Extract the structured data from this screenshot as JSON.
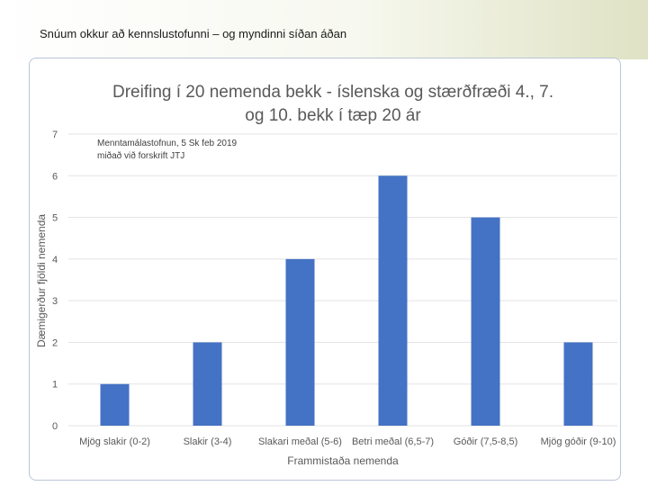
{
  "header": {
    "title": "Snúum okkur að kennslustofunni – og myndinni síðan áðan"
  },
  "chart_data": {
    "type": "bar",
    "title_lines": [
      "Dreifing í 20 nemenda bekk - íslenska og stærðfræði 4., 7.",
      "og 10. bekk í tæp 20 ár"
    ],
    "annotation_lines": [
      "Menntamálastofnun, 5 Sk feb 2019",
      "miðað við forskrift JTJ"
    ],
    "categories": [
      "Mjög slakir (0-2)",
      "Slakir (3-4)",
      "Slakari meðal (5-6)",
      "Betri meðal (6,5-7)",
      "Góðir (7,5-8,5)",
      "Mjög góðir (9-10)"
    ],
    "values": [
      1,
      2,
      4,
      6,
      5,
      2
    ],
    "xlabel": "Frammistaða nemenda",
    "ylabel": "Dæmigerður fjöldi nemenda",
    "ylim": [
      0,
      7
    ],
    "yticks": [
      0,
      1,
      2,
      3,
      4,
      5,
      6,
      7
    ],
    "grid": true,
    "bar_color": "#4472c4"
  }
}
